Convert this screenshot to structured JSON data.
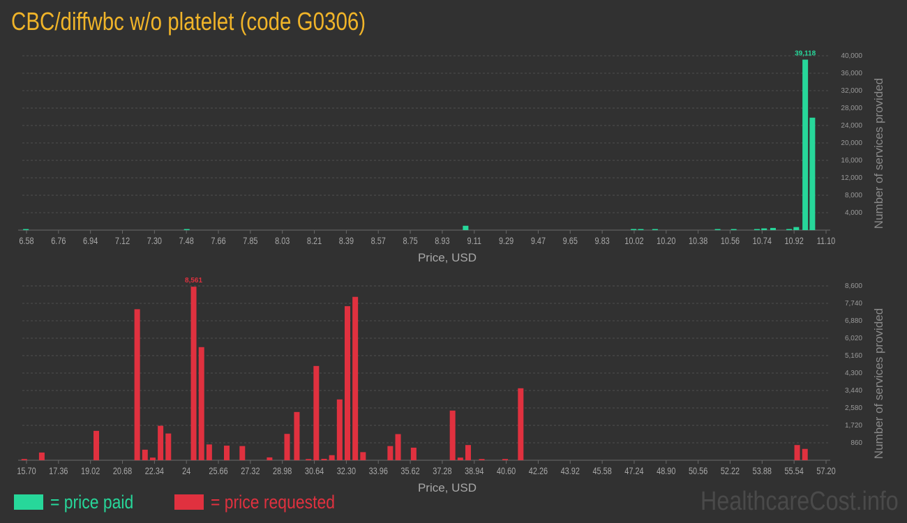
{
  "title": "CBC/diffwbc w/o platelet (code G0306)",
  "legend": {
    "paid": {
      "label": "= price paid",
      "color": "#27d79a"
    },
    "requested": {
      "label": "= price requested",
      "color": "#e0313f"
    }
  },
  "watermark": "HealthcareCost.info",
  "chart_data": [
    {
      "type": "bar",
      "name": "price-paid",
      "xlabel": "Price, USD",
      "ylabel": "Number of services provided",
      "color": "#27d79a",
      "grid": true,
      "x_ticks": [
        "6.58",
        "6.76",
        "6.94",
        "7.12",
        "7.30",
        "7.48",
        "7.66",
        "7.85",
        "8.03",
        "8.21",
        "8.39",
        "8.57",
        "8.75",
        "8.93",
        "9.11",
        "9.29",
        "9.47",
        "9.65",
        "9.83",
        "10.02",
        "10.20",
        "10.38",
        "10.56",
        "10.74",
        "10.92",
        "11.10"
      ],
      "xlim": [
        6.58,
        11.1
      ],
      "y_ticks": [
        "4,000",
        "8,000",
        "12,000",
        "16,000",
        "20,000",
        "24,000",
        "28,000",
        "32,000",
        "36,000",
        "40,000"
      ],
      "ylim": [
        0,
        40000
      ],
      "max_label": "39,118",
      "x": [
        6.6,
        7.5,
        9.06,
        10.0,
        10.04,
        10.12,
        10.47,
        10.56,
        10.69,
        10.73,
        10.78,
        10.87,
        10.91,
        10.96,
        11.0
      ],
      "values": [
        150,
        100,
        1000,
        250,
        100,
        80,
        80,
        80,
        150,
        400,
        500,
        250,
        700,
        39118,
        25800
      ]
    },
    {
      "type": "bar",
      "name": "price-requested",
      "xlabel": "Price, USD",
      "ylabel": "Number of services provided",
      "color": "#e0313f",
      "grid": true,
      "x_ticks": [
        "15.70",
        "17.36",
        "19.02",
        "20.68",
        "22.34",
        "24",
        "25.66",
        "27.32",
        "28.98",
        "30.64",
        "32.30",
        "33.96",
        "35.62",
        "37.28",
        "38.94",
        "40.60",
        "42.26",
        "43.92",
        "45.58",
        "47.24",
        "48.90",
        "50.56",
        "52.22",
        "53.88",
        "55.54",
        "57.20"
      ],
      "xlim": [
        15.7,
        57.2
      ],
      "y_ticks": [
        "860",
        "1,720",
        "2,580",
        "3,440",
        "4,300",
        "5,160",
        "6,020",
        "6,880",
        "7,740",
        "8,600"
      ],
      "ylim": [
        0,
        8600
      ],
      "max_label": "8,561",
      "x": [
        15.8,
        16.7,
        19.5,
        21.6,
        22.0,
        22.4,
        22.8,
        23.2,
        24.5,
        24.9,
        25.3,
        26.2,
        27.0,
        28.4,
        29.3,
        29.8,
        30.4,
        30.8,
        31.2,
        31.6,
        32.0,
        32.4,
        32.8,
        33.2,
        34.6,
        35.0,
        35.8,
        37.8,
        38.2,
        38.6,
        39.3,
        40.5,
        41.3,
        55.5,
        55.9
      ],
      "values": [
        60,
        380,
        1450,
        7450,
        520,
        130,
        1700,
        1320,
        8561,
        5580,
        780,
        720,
        700,
        140,
        1300,
        2380,
        60,
        4650,
        70,
        250,
        3000,
        7600,
        8060,
        400,
        700,
        1290,
        620,
        2450,
        130,
        750,
        60,
        60,
        3550,
        750,
        560
      ]
    }
  ]
}
